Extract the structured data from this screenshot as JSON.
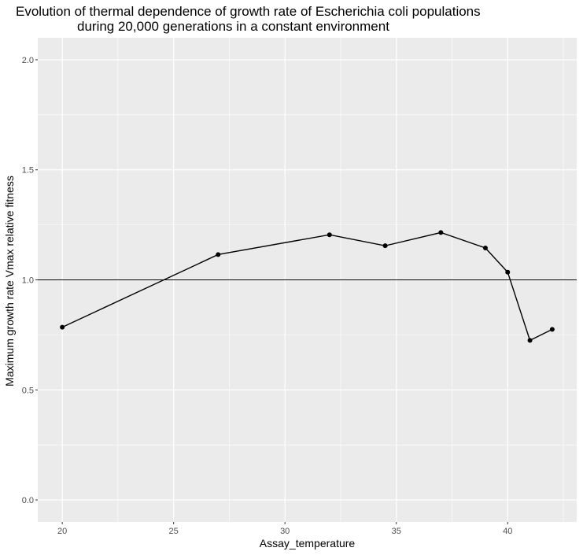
{
  "chart_data": {
    "type": "line",
    "title_line1": "Evolution of thermal dependence of growth rate of Escherichia coli populations",
    "title_line2": "during 20,000 generations in a constant environment",
    "xlabel": "Assay_temperature",
    "ylabel": "Maximum growth rate Vmax  relative fitness",
    "xlim": [
      18.9,
      43.1
    ],
    "ylim": [
      -0.1,
      2.1
    ],
    "x_ticks": [
      20,
      25,
      30,
      35,
      40
    ],
    "y_ticks": [
      0.0,
      0.5,
      1.0,
      1.5,
      2.0
    ],
    "x_tick_labels": [
      "20",
      "25",
      "30",
      "35",
      "40"
    ],
    "y_tick_labels": [
      "0.0",
      "0.5",
      "1.0",
      "1.5",
      "2.0"
    ],
    "x": [
      20,
      27,
      32,
      34.5,
      37,
      39,
      40,
      41,
      42
    ],
    "y": [
      0.785,
      1.115,
      1.205,
      1.155,
      1.215,
      1.145,
      1.035,
      0.725,
      0.775
    ],
    "reference_line_y": 1.0,
    "grid": true,
    "colors": {
      "panel": "#ebebeb",
      "grid": "#ffffff",
      "line": "#000000",
      "point": "#000000"
    }
  }
}
